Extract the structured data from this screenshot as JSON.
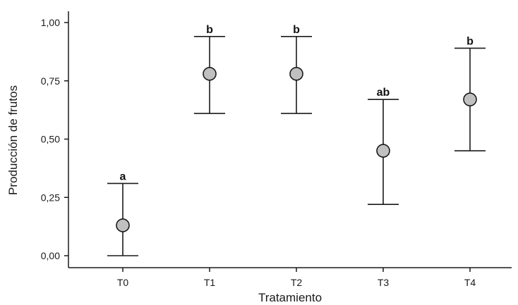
{
  "chart_data": {
    "type": "scatter",
    "xlabel": "Tratamiento",
    "ylabel": "Producción de frutos",
    "ylim": [
      0,
      1
    ],
    "yticks": [
      "0,00",
      "0,25",
      "0,50",
      "0,75",
      "1,00"
    ],
    "ytick_values": [
      0,
      0.25,
      0.5,
      0.75,
      1.0
    ],
    "categories": [
      "T0",
      "T1",
      "T2",
      "T3",
      "T4"
    ],
    "series": [
      {
        "values": [
          0.13,
          0.78,
          0.78,
          0.45,
          0.67
        ],
        "lower": [
          0.0,
          0.61,
          0.61,
          0.22,
          0.45
        ],
        "upper": [
          0.31,
          0.94,
          0.94,
          0.67,
          0.89
        ],
        "labels": [
          "a",
          "b",
          "b",
          "ab",
          "b"
        ]
      }
    ],
    "grid": false,
    "legend": "none",
    "marker_fill": "#c0c0c0",
    "marker_stroke": "#1a1a1a"
  }
}
